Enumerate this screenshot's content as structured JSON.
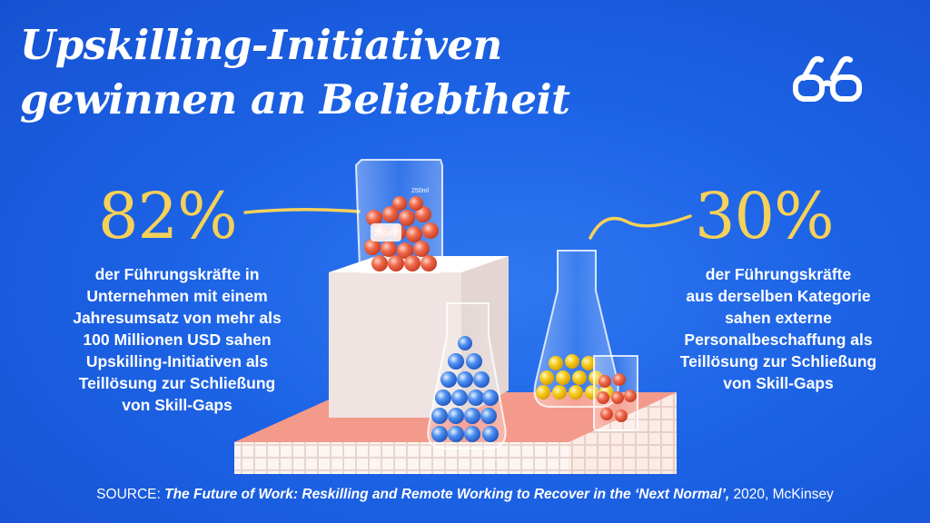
{
  "title": "Upskilling-Initiativen gewinnen an Beliebtheit",
  "logo": {
    "icon": "glasses-icon"
  },
  "stat_left": {
    "value": "82%",
    "text": "der Führungskräfte in\nUnternehmen mit einem\nJahresumsatz von mehr als\n100 Millionen USD sahen\nUpskilling-Initiativen als\nTeillösung zur Schließung\nvon Skill-Gaps"
  },
  "stat_right": {
    "value": "30%",
    "text": "der Führungskräfte\naus derselben Kategorie\nsahen externe\nPersonalbeschaffung als\nTeillösung zur Schließung\nvon Skill-Gaps"
  },
  "beaker_label": "250ml",
  "source": {
    "label": "SOURCE:",
    "title": "The Future of Work: Reskilling and Remote Working to Recover in the ‘Next Normal’,",
    "rest": "2020, McKinsey"
  },
  "colors": {
    "background": "#1d63e6",
    "accent_yellow": "#f6d159",
    "pedestal_coral": "#f08f80",
    "marble_red": "#e8543a",
    "marble_blue": "#3a7de0",
    "marble_yellow": "#f2c200"
  }
}
